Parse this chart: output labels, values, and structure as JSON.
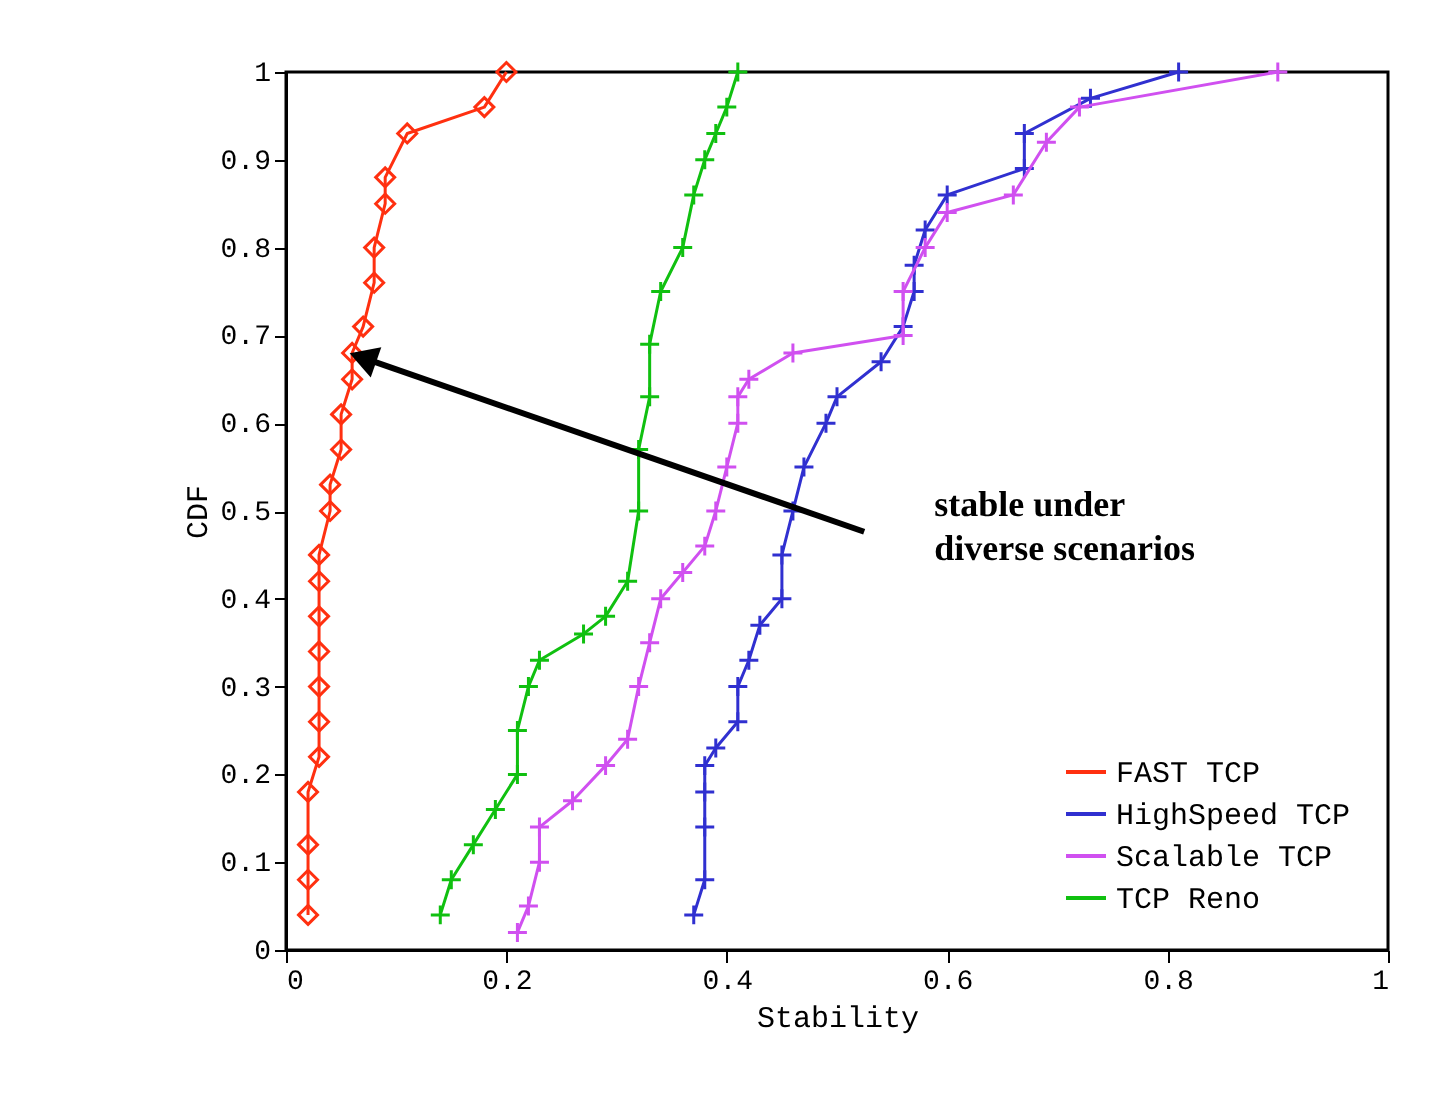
{
  "chart_data": {
    "type": "line",
    "xlabel": "Stability",
    "ylabel": "CDF",
    "xlim": [
      0,
      1
    ],
    "ylim": [
      0,
      1
    ],
    "xticks": [
      0,
      0.2,
      0.4,
      0.6,
      0.8,
      1
    ],
    "yticks": [
      0,
      0.1,
      0.2,
      0.3,
      0.4,
      0.5,
      0.6,
      0.7,
      0.8,
      0.9,
      1
    ],
    "grid": false,
    "legend": "bottom right",
    "line_style": "solid",
    "series": [
      {
        "name": "FAST TCP",
        "color": "#ff3010",
        "marker": "diamond",
        "x": [
          0.02,
          0.02,
          0.02,
          0.02,
          0.03,
          0.03,
          0.03,
          0.03,
          0.03,
          0.03,
          0.03,
          0.04,
          0.04,
          0.05,
          0.05,
          0.06,
          0.06,
          0.07,
          0.08,
          0.08,
          0.09,
          0.09,
          0.11,
          0.18,
          0.2
        ],
        "values": [
          0.04,
          0.08,
          0.12,
          0.18,
          0.22,
          0.26,
          0.3,
          0.34,
          0.38,
          0.42,
          0.45,
          0.5,
          0.53,
          0.57,
          0.61,
          0.65,
          0.68,
          0.71,
          0.76,
          0.8,
          0.85,
          0.88,
          0.93,
          0.96,
          1.0
        ]
      },
      {
        "name": "HighSpeed TCP",
        "color": "#3030d0",
        "marker": "cross",
        "x": [
          0.37,
          0.38,
          0.38,
          0.38,
          0.38,
          0.39,
          0.41,
          0.41,
          0.42,
          0.43,
          0.45,
          0.45,
          0.46,
          0.47,
          0.49,
          0.5,
          0.54,
          0.56,
          0.57,
          0.57,
          0.58,
          0.6,
          0.67,
          0.67,
          0.73,
          0.81
        ],
        "values": [
          0.04,
          0.08,
          0.14,
          0.18,
          0.21,
          0.23,
          0.26,
          0.3,
          0.33,
          0.37,
          0.4,
          0.45,
          0.5,
          0.55,
          0.6,
          0.63,
          0.67,
          0.71,
          0.75,
          0.78,
          0.82,
          0.86,
          0.89,
          0.93,
          0.97,
          1.0
        ]
      },
      {
        "name": "Scalable TCP",
        "color": "#d050f0",
        "marker": "cross",
        "x": [
          0.21,
          0.22,
          0.23,
          0.23,
          0.26,
          0.29,
          0.31,
          0.32,
          0.33,
          0.34,
          0.36,
          0.38,
          0.39,
          0.4,
          0.41,
          0.41,
          0.42,
          0.46,
          0.56,
          0.56,
          0.58,
          0.6,
          0.66,
          0.69,
          0.72,
          0.9
        ],
        "values": [
          0.02,
          0.05,
          0.1,
          0.14,
          0.17,
          0.21,
          0.24,
          0.3,
          0.35,
          0.4,
          0.43,
          0.46,
          0.5,
          0.55,
          0.6,
          0.63,
          0.65,
          0.68,
          0.7,
          0.75,
          0.8,
          0.84,
          0.86,
          0.92,
          0.96,
          1.0
        ]
      },
      {
        "name": "TCP Reno",
        "color": "#10c010",
        "marker": "cross",
        "x": [
          0.14,
          0.15,
          0.17,
          0.19,
          0.21,
          0.21,
          0.22,
          0.23,
          0.27,
          0.29,
          0.31,
          0.32,
          0.32,
          0.33,
          0.33,
          0.34,
          0.36,
          0.37,
          0.38,
          0.39,
          0.4,
          0.41
        ],
        "values": [
          0.04,
          0.08,
          0.12,
          0.16,
          0.2,
          0.25,
          0.3,
          0.33,
          0.36,
          0.38,
          0.42,
          0.5,
          0.57,
          0.63,
          0.69,
          0.75,
          0.8,
          0.86,
          0.9,
          0.93,
          0.96,
          1.0
        ]
      }
    ],
    "annotations": [
      "stable under\ndiverse scenarios"
    ]
  }
}
